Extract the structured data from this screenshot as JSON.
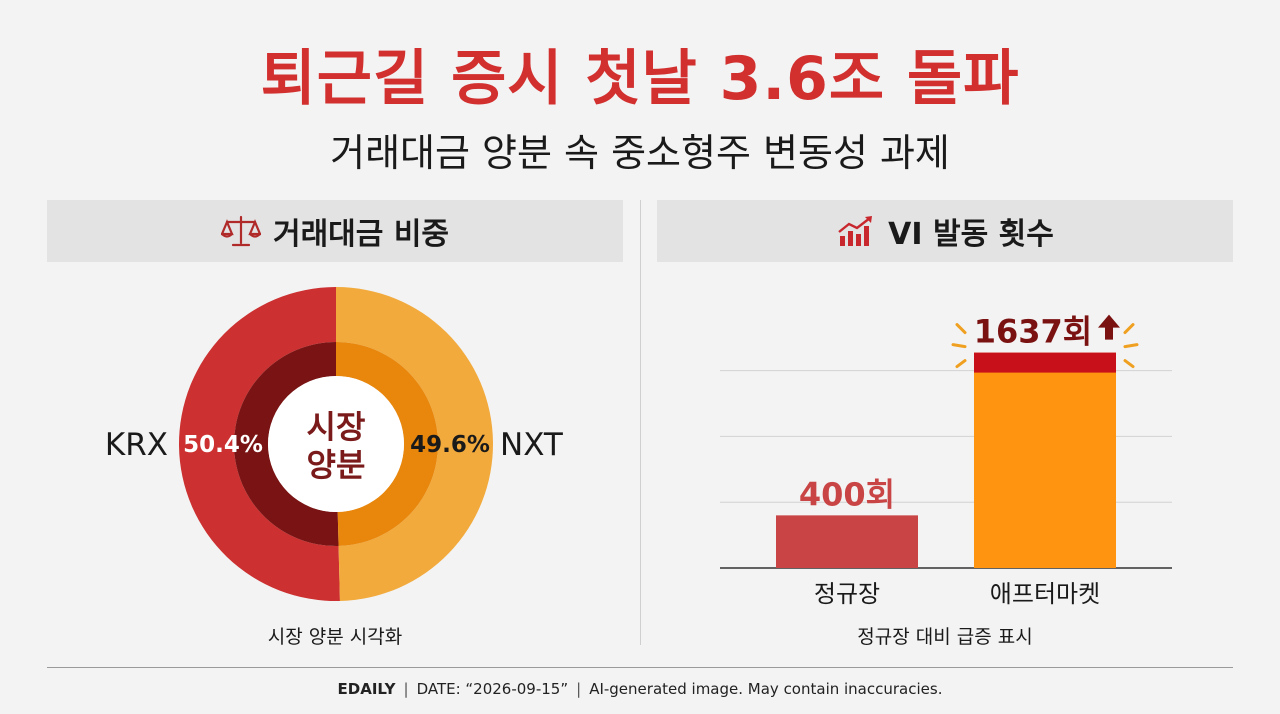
{
  "header": {
    "title": "퇴근길 증시 첫날 3.6조 돌파",
    "subtitle": "거래대금 양분 속 중소형주 변동성 과제"
  },
  "panels": {
    "left": {
      "title": "거래대금 비중",
      "icon": "scale-icon",
      "caption": "시장 양분 시각화"
    },
    "right": {
      "title": "VI 발동 횟수",
      "icon": "chart-growth-icon",
      "caption": "정규장 대비 급증 표시"
    }
  },
  "footer": {
    "brand": "EDAILY",
    "date": "DATE: “2026-09-15”",
    "disclaimer": "AI-generated image. May contain inaccuracies."
  },
  "colors": {
    "title_red": "#d22f2f",
    "krx_outer": "#cc3030",
    "krx_inner": "#7a1414",
    "nxt_outer": "#f2aa3c",
    "nxt_inner": "#e8870c",
    "bar_regular": "#c94444",
    "bar_after": "#ff9410",
    "bar_after_top": "#c8101a"
  },
  "chart_data": [
    {
      "type": "pie",
      "center_label": [
        "시장",
        "양분"
      ],
      "slices": [
        {
          "name": "KRX",
          "value": 50.4,
          "label": "50.4%"
        },
        {
          "name": "NXT",
          "value": 49.6,
          "label": "49.6%"
        }
      ]
    },
    {
      "type": "bar",
      "categories": [
        "정규장",
        "애프터마켓"
      ],
      "values": [
        400,
        1637
      ],
      "value_labels": [
        "400회",
        "1637회"
      ],
      "ylim": [
        0,
        1900
      ],
      "grid": true
    }
  ]
}
